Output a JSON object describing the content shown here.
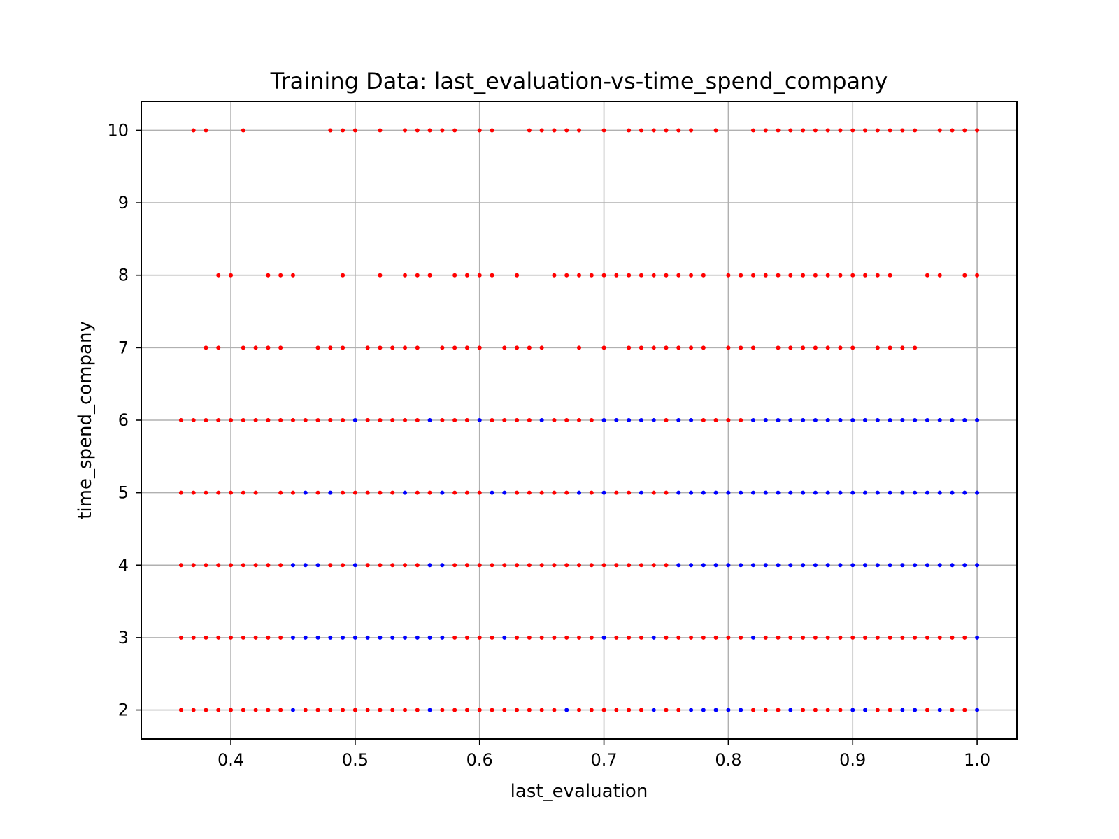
{
  "chart_data": {
    "type": "scatter",
    "title": "Training Data: last_evaluation-vs-time_spend_company",
    "xlabel": "last_evaluation",
    "ylabel": "time_spend_company",
    "xlim": [
      0.328,
      1.032
    ],
    "ylim": [
      1.6,
      10.4
    ],
    "xticks": [
      0.4,
      0.5,
      0.6,
      0.7,
      0.8,
      0.9,
      1.0
    ],
    "xtick_labels": [
      "0.4",
      "0.5",
      "0.6",
      "0.7",
      "0.8",
      "0.9",
      "1.0"
    ],
    "yticks": [
      2,
      3,
      4,
      5,
      6,
      7,
      8,
      9,
      10
    ],
    "ytick_labels": [
      "2",
      "3",
      "4",
      "5",
      "6",
      "7",
      "8",
      "9",
      "10"
    ],
    "grid": true,
    "marker_size": "small",
    "colors": {
      "class_red": "#ff0000",
      "class_blue": "#0000ff",
      "grid": "#b0b0b0"
    },
    "rows": [
      {
        "y": 10,
        "red": [
          0.37,
          0.38,
          0.41,
          0.48,
          0.49,
          0.5,
          0.52,
          0.54,
          0.55,
          0.56,
          0.57,
          0.58,
          0.6,
          0.61,
          0.64,
          0.65,
          0.66,
          0.67,
          0.68,
          0.7,
          0.72,
          0.73,
          0.74,
          0.75,
          0.76,
          0.77,
          0.79,
          0.82,
          0.83,
          0.84,
          0.85,
          0.86,
          0.87,
          0.88,
          0.89,
          0.9,
          0.91,
          0.92,
          0.93,
          0.94,
          0.95,
          0.97,
          0.98,
          0.99,
          1.0
        ],
        "blue": []
      },
      {
        "y": 8,
        "red": [
          0.39,
          0.4,
          0.43,
          0.44,
          0.45,
          0.49,
          0.52,
          0.54,
          0.55,
          0.56,
          0.58,
          0.59,
          0.6,
          0.61,
          0.63,
          0.66,
          0.67,
          0.68,
          0.69,
          0.7,
          0.71,
          0.72,
          0.73,
          0.74,
          0.75,
          0.76,
          0.77,
          0.78,
          0.8,
          0.81,
          0.82,
          0.83,
          0.84,
          0.85,
          0.86,
          0.87,
          0.88,
          0.89,
          0.9,
          0.91,
          0.92,
          0.93,
          0.96,
          0.97,
          0.99,
          1.0
        ],
        "blue": []
      },
      {
        "y": 7,
        "red": [
          0.38,
          0.39,
          0.41,
          0.42,
          0.43,
          0.44,
          0.47,
          0.48,
          0.49,
          0.51,
          0.52,
          0.53,
          0.54,
          0.55,
          0.57,
          0.58,
          0.59,
          0.6,
          0.62,
          0.63,
          0.64,
          0.65,
          0.68,
          0.7,
          0.72,
          0.73,
          0.74,
          0.75,
          0.76,
          0.77,
          0.78,
          0.8,
          0.81,
          0.82,
          0.84,
          0.85,
          0.86,
          0.87,
          0.88,
          0.89,
          0.9,
          0.92,
          0.93,
          0.94,
          0.95
        ],
        "blue": []
      },
      {
        "y": 6,
        "red": [
          0.36,
          0.37,
          0.38,
          0.39,
          0.4,
          0.41,
          0.42,
          0.43,
          0.44,
          0.45,
          0.46,
          0.47,
          0.48,
          0.49,
          0.51,
          0.52,
          0.53,
          0.54,
          0.55,
          0.57,
          0.58,
          0.59,
          0.61,
          0.62,
          0.63,
          0.64,
          0.66,
          0.67,
          0.68,
          0.69,
          0.75,
          0.78,
          0.79,
          0.8,
          0.81
        ],
        "blue": [
          0.5,
          0.56,
          0.6,
          0.65,
          0.7,
          0.71,
          0.72,
          0.73,
          0.74,
          0.76,
          0.77,
          0.82,
          0.83,
          0.84,
          0.85,
          0.86,
          0.87,
          0.88,
          0.89,
          0.9,
          0.91,
          0.92,
          0.93,
          0.94,
          0.95,
          0.96,
          0.97,
          0.98,
          0.99,
          1.0
        ]
      },
      {
        "y": 5,
        "red": [
          0.36,
          0.37,
          0.38,
          0.39,
          0.4,
          0.41,
          0.42,
          0.44,
          0.45,
          0.47,
          0.49,
          0.5,
          0.51,
          0.52,
          0.53,
          0.55,
          0.56,
          0.58,
          0.59,
          0.6,
          0.63,
          0.64,
          0.65,
          0.66,
          0.67,
          0.69,
          0.71,
          0.72,
          0.74,
          0.75
        ],
        "blue": [
          0.46,
          0.48,
          0.54,
          0.57,
          0.61,
          0.62,
          0.68,
          0.7,
          0.73,
          0.76,
          0.77,
          0.78,
          0.79,
          0.8,
          0.81,
          0.82,
          0.83,
          0.84,
          0.85,
          0.86,
          0.87,
          0.88,
          0.89,
          0.9,
          0.91,
          0.92,
          0.93,
          0.94,
          0.95,
          0.96,
          0.97,
          0.98,
          0.99,
          1.0
        ]
      },
      {
        "y": 4,
        "red": [
          0.36,
          0.37,
          0.38,
          0.39,
          0.4,
          0.41,
          0.42,
          0.43,
          0.44,
          0.48,
          0.49,
          0.51,
          0.52,
          0.53,
          0.54,
          0.55,
          0.58,
          0.59,
          0.6,
          0.61,
          0.62,
          0.63,
          0.64,
          0.65,
          0.66,
          0.67,
          0.68,
          0.69,
          0.7,
          0.71,
          0.72,
          0.73,
          0.74,
          0.75
        ],
        "blue": [
          0.45,
          0.46,
          0.47,
          0.5,
          0.56,
          0.57,
          0.76,
          0.77,
          0.78,
          0.79,
          0.8,
          0.81,
          0.82,
          0.83,
          0.84,
          0.85,
          0.86,
          0.87,
          0.88,
          0.89,
          0.9,
          0.91,
          0.92,
          0.93,
          0.94,
          0.95,
          0.96,
          0.97,
          0.98,
          0.99,
          1.0
        ]
      },
      {
        "y": 3,
        "red": [
          0.36,
          0.37,
          0.38,
          0.39,
          0.4,
          0.41,
          0.42,
          0.43,
          0.44,
          0.58,
          0.59,
          0.6,
          0.61,
          0.63,
          0.64,
          0.65,
          0.66,
          0.67,
          0.68,
          0.69,
          0.71,
          0.72,
          0.73,
          0.75,
          0.76,
          0.77,
          0.78,
          0.79,
          0.8,
          0.81,
          0.83,
          0.84,
          0.85,
          0.86,
          0.87,
          0.88,
          0.89,
          0.9,
          0.91,
          0.92,
          0.93,
          0.94,
          0.95,
          0.96,
          0.97,
          0.98,
          0.99
        ],
        "blue": [
          0.45,
          0.46,
          0.47,
          0.48,
          0.49,
          0.5,
          0.51,
          0.52,
          0.53,
          0.54,
          0.55,
          0.56,
          0.57,
          0.62,
          0.7,
          0.74,
          0.82,
          1.0
        ]
      },
      {
        "y": 2,
        "red": [
          0.36,
          0.37,
          0.38,
          0.39,
          0.4,
          0.41,
          0.42,
          0.43,
          0.44,
          0.46,
          0.47,
          0.48,
          0.49,
          0.5,
          0.51,
          0.52,
          0.53,
          0.54,
          0.55,
          0.57,
          0.58,
          0.59,
          0.6,
          0.61,
          0.62,
          0.63,
          0.64,
          0.65,
          0.66,
          0.68,
          0.69,
          0.7,
          0.71,
          0.72,
          0.73,
          0.75,
          0.76,
          0.82,
          0.83,
          0.84,
          0.86,
          0.87,
          0.88,
          0.89,
          0.92,
          0.93,
          0.96,
          0.98,
          0.99
        ],
        "blue": [
          0.45,
          0.56,
          0.67,
          0.74,
          0.77,
          0.78,
          0.79,
          0.8,
          0.81,
          0.85,
          0.9,
          0.91,
          0.94,
          0.95,
          0.97,
          1.0
        ]
      }
    ]
  }
}
